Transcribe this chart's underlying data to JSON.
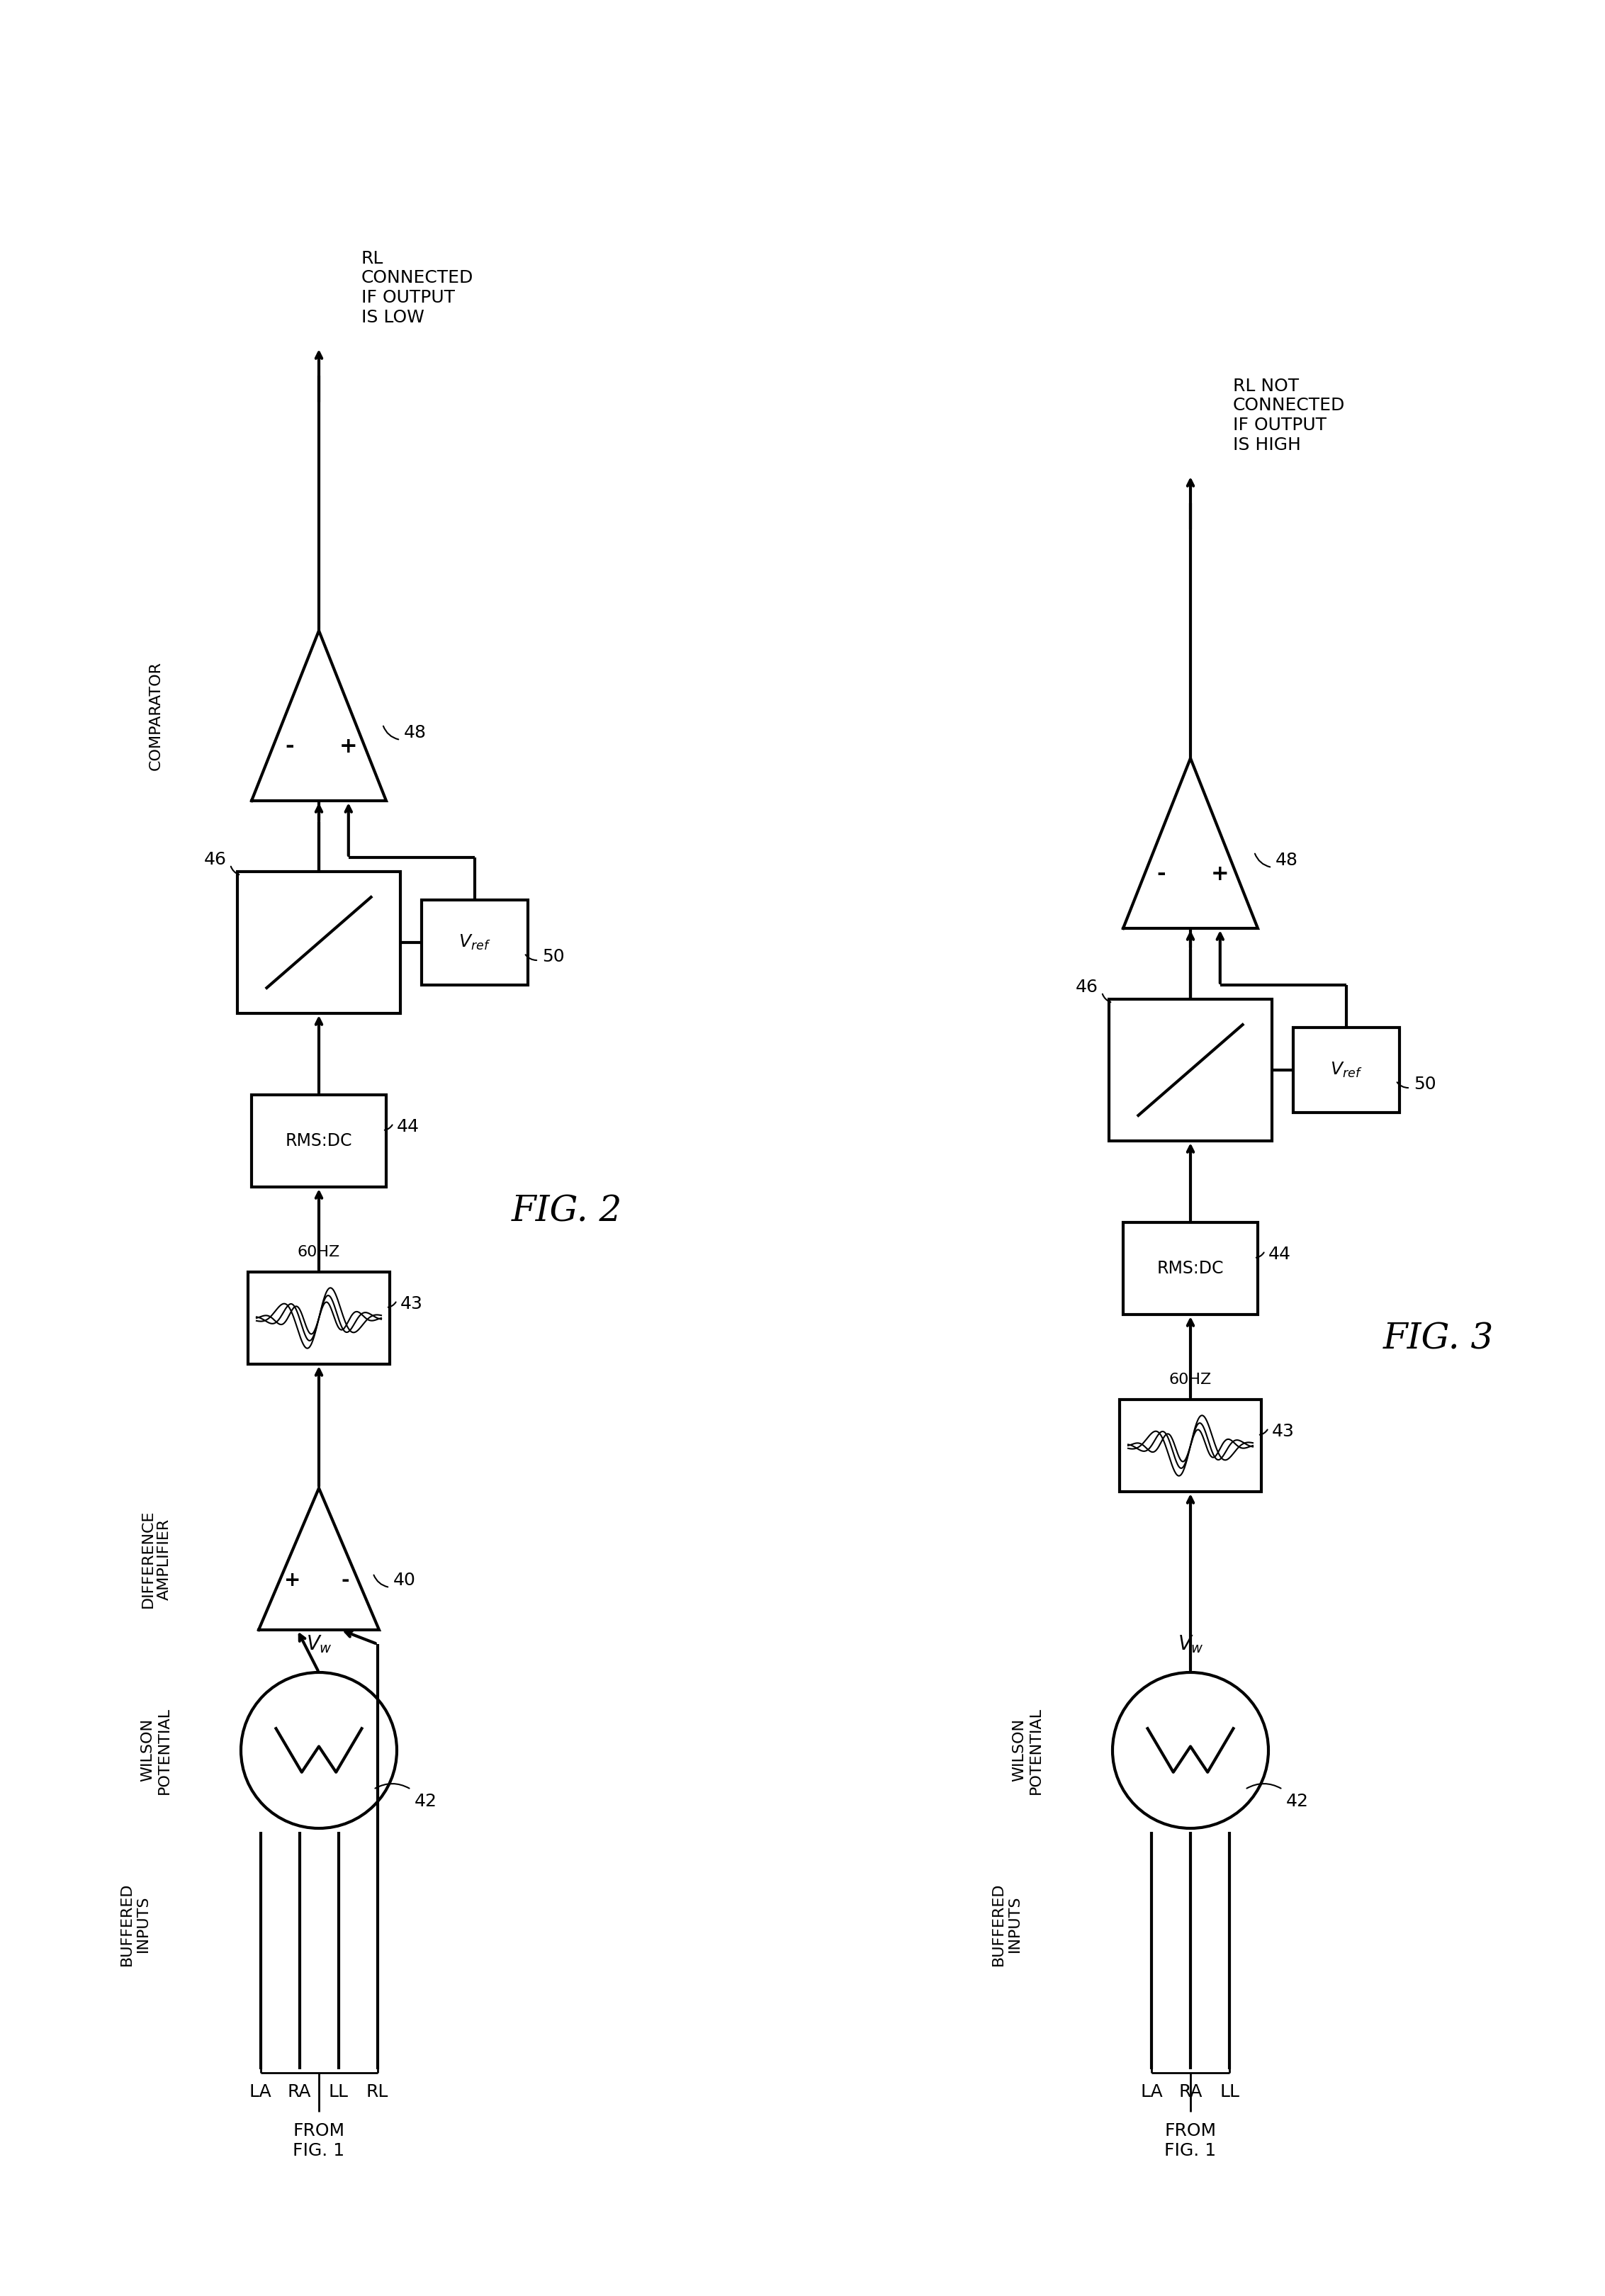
{
  "bg_color": "#ffffff",
  "line_color": "#000000",
  "fig2": {
    "title": "FIG. 2",
    "annotation": "RL\nCONNECTED\nIF OUTPUT\nIS LOW",
    "has_diff_amp": true,
    "has_rl": true
  },
  "fig3": {
    "title": "FIG. 3",
    "annotation": "RL NOT\nCONNECTED\nIF OUTPUT\nIS HIGH",
    "has_diff_amp": false,
    "has_rl": false
  }
}
